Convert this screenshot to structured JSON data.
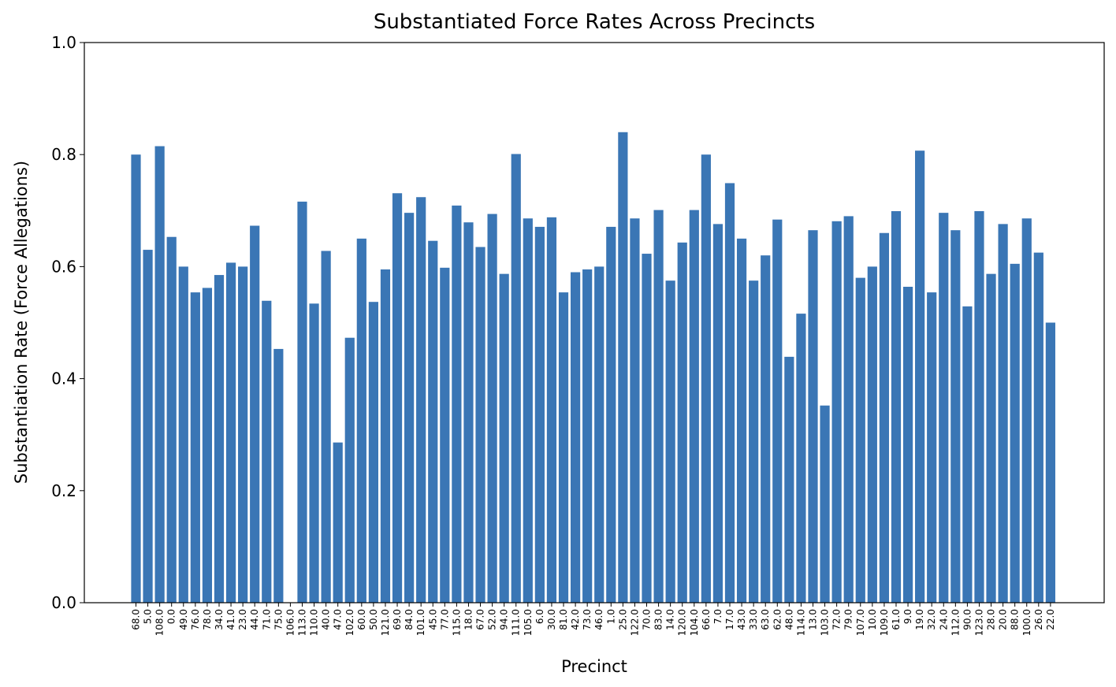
{
  "chart_data": {
    "type": "bar",
    "title": "Substantiated Force Rates Across Precincts",
    "xlabel": "Precinct",
    "ylabel": "Substantiation Rate (Force Allegations)",
    "ylim": [
      0,
      1.0
    ],
    "yticks": [
      "0.0",
      "0.2",
      "0.4",
      "0.6",
      "0.8",
      "1.0"
    ],
    "grid": false,
    "bar_color": "#3a76b5",
    "categories": [
      "68.0",
      "5.0",
      "108.0",
      "0.0",
      "49.0",
      "76.0",
      "78.0",
      "34.0",
      "41.0",
      "23.0",
      "44.0",
      "71.0",
      "75.0",
      "106.0",
      "113.0",
      "110.0",
      "40.0",
      "47.0",
      "102.0",
      "60.0",
      "50.0",
      "121.0",
      "69.0",
      "84.0",
      "101.0",
      "45.0",
      "77.0",
      "115.0",
      "18.0",
      "67.0",
      "52.0",
      "94.0",
      "111.0",
      "105.0",
      "6.0",
      "30.0",
      "81.0",
      "42.0",
      "73.0",
      "46.0",
      "1.0",
      "25.0",
      "122.0",
      "70.0",
      "83.0",
      "14.0",
      "120.0",
      "104.0",
      "66.0",
      "7.0",
      "17.0",
      "43.0",
      "33.0",
      "63.0",
      "62.0",
      "48.0",
      "114.0",
      "13.0",
      "103.0",
      "72.0",
      "79.0",
      "107.0",
      "10.0",
      "109.0",
      "61.0",
      "9.0",
      "19.0",
      "32.0",
      "24.0",
      "112.0",
      "90.0",
      "123.0",
      "28.0",
      "20.0",
      "88.0",
      "100.0",
      "26.0",
      "22.0"
    ],
    "values": [
      0.8,
      0.63,
      0.815,
      0.653,
      0.6,
      0.554,
      0.562,
      0.585,
      0.607,
      0.6,
      0.673,
      0.539,
      0.453,
      0.0,
      0.716,
      0.534,
      0.628,
      0.286,
      0.473,
      0.65,
      0.537,
      0.595,
      0.731,
      0.696,
      0.724,
      0.646,
      0.598,
      0.709,
      0.679,
      0.635,
      0.694,
      0.587,
      0.801,
      0.686,
      0.671,
      0.688,
      0.554,
      0.59,
      0.595,
      0.6,
      0.671,
      0.84,
      0.686,
      0.623,
      0.701,
      0.575,
      0.643,
      0.701,
      0.8,
      0.676,
      0.749,
      0.65,
      0.575,
      0.62,
      0.684,
      0.439,
      0.516,
      0.665,
      0.352,
      0.681,
      0.69,
      0.58,
      0.6,
      0.66,
      0.699,
      0.564,
      0.807,
      0.554,
      0.696,
      0.665,
      0.529,
      0.699,
      0.587,
      0.676,
      0.605,
      0.686,
      0.625,
      0.5
    ]
  }
}
